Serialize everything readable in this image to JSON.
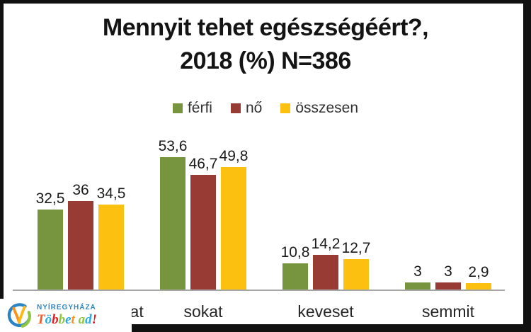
{
  "title": {
    "line1": "Mennyit tehet egészségéért?,",
    "line2": "2018 (%) N=386"
  },
  "legend": {
    "items": [
      {
        "label": "férfi",
        "color": "#77953F"
      },
      {
        "label": "nő",
        "color": "#983B35"
      },
      {
        "label": "összesen",
        "color": "#FCC011"
      }
    ]
  },
  "chart_data": {
    "type": "bar",
    "title": "Mennyit tehet egészségéért?, 2018 (%) N=386",
    "categories": [
      "okat",
      "sokat",
      "keveset",
      "semmit"
    ],
    "series": [
      {
        "name": "férfi",
        "color": "#77953F",
        "values": [
          32.5,
          53.6,
          10.8,
          3
        ]
      },
      {
        "name": "nő",
        "color": "#983B35",
        "values": [
          36,
          46.7,
          14.2,
          3
        ]
      },
      {
        "name": "összesen",
        "color": "#FCC011",
        "values": [
          34.5,
          49.8,
          12.7,
          2.9
        ]
      }
    ],
    "value_labels": [
      [
        "32,5",
        "36",
        "34,5"
      ],
      [
        "53,6",
        "46,7",
        "49,8"
      ],
      [
        "10,8",
        "14,2",
        "12,7"
      ],
      [
        "3",
        "3",
        "2,9"
      ]
    ],
    "ylim": [
      0,
      60
    ],
    "grid": false,
    "legend_position": "top",
    "axis_line_color": "#A6A6A6"
  },
  "logo": {
    "city": "NYÍREGYHÁZA",
    "city_color": "#2E86C1",
    "slogan": "Többet ad!",
    "slogan_letters": [
      {
        "ch": "T",
        "color": "#F15A24"
      },
      {
        "ch": "ö",
        "color": "#29ABE2"
      },
      {
        "ch": "b",
        "color": "#ED1C24"
      },
      {
        "ch": "b",
        "color": "#8DC63F"
      },
      {
        "ch": "e",
        "color": "#29ABE2"
      },
      {
        "ch": "t",
        "color": "#F7941D"
      },
      {
        "ch": " ",
        "color": "#000000"
      },
      {
        "ch": "a",
        "color": "#8DC63F"
      },
      {
        "ch": "d",
        "color": "#29ABE2"
      },
      {
        "ch": "!",
        "color": "#ED1C24"
      }
    ]
  }
}
